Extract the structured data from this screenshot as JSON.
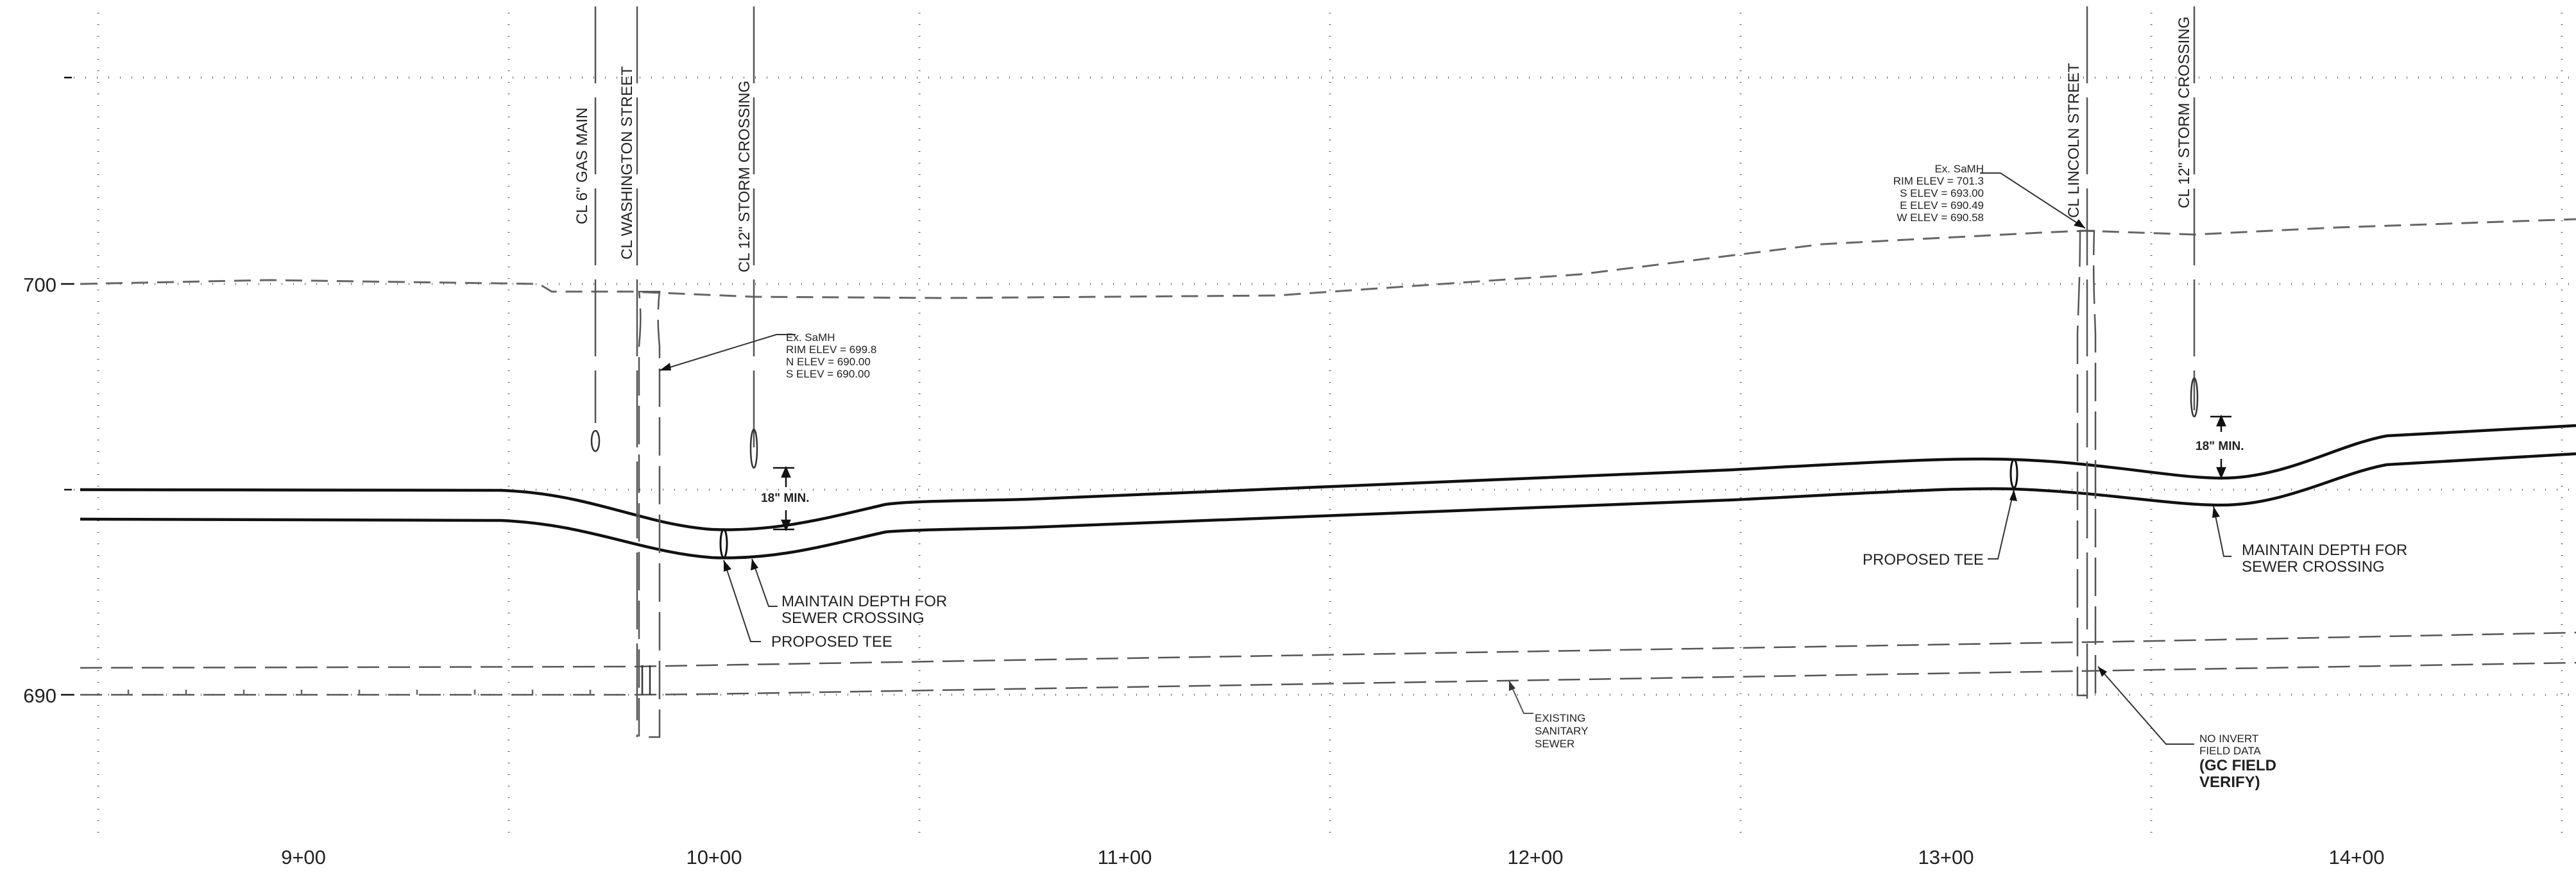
{
  "elevation_labels": [
    {
      "key": "e700",
      "text": "700"
    },
    {
      "key": "e690",
      "text": "690"
    }
  ],
  "station_labels": [
    "9+00",
    "10+00",
    "11+00",
    "12+00",
    "13+00",
    "14+00"
  ],
  "crossing_labels": {
    "gas_main": "CL 6\" GAS MAIN",
    "washington": "CL WASHINGTON STREET",
    "storm_left": "CL 12\" STORM CROSSING",
    "lincoln": "CL LINCOLN STREET",
    "storm_right": "CL 12\" STORM CROSSING"
  },
  "manhole_left": {
    "lines": [
      "Ex. SaMH",
      "RIM ELEV = 699.8",
      "N ELEV = 690.00",
      "S ELEV = 690.00"
    ]
  },
  "manhole_right": {
    "lines": [
      "Ex. SaMH",
      "RIM ELEV = 701.3",
      "S ELEV = 693.00",
      "E ELEV = 690.49",
      "W ELEV = 690.58"
    ]
  },
  "clearance_left": "18\" MIN.",
  "clearance_right": "18\" MIN.",
  "maintain_depth_left": [
    "MAINTAIN DEPTH FOR",
    "SEWER CROSSING"
  ],
  "maintain_depth_right": [
    "MAINTAIN DEPTH FOR",
    "SEWER CROSSING"
  ],
  "proposed_tee_left": "PROPOSED TEE",
  "proposed_tee_right": "PROPOSED TEE",
  "existing_sewer": [
    "EXISTING",
    "SANITARY",
    "SEWER"
  ],
  "field_note": {
    "small": [
      "NO INVERT",
      "FIELD DATA"
    ],
    "bold": [
      "(GC FIELD",
      "VERIFY)"
    ]
  },
  "colors": {
    "line": "#111111",
    "grid": "#555555",
    "dash": "#666666",
    "text": "#222222"
  }
}
